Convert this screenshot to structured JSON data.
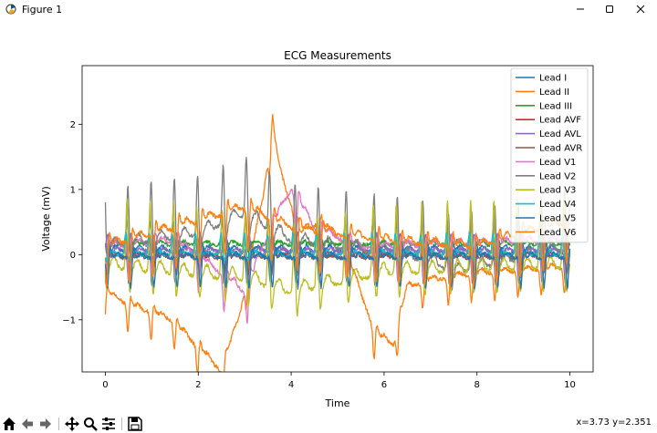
{
  "window": {
    "title": "Figure 1"
  },
  "toolbar": {
    "tools": [
      "home-icon",
      "back-icon",
      "forward-icon",
      "pan-icon",
      "zoom-icon",
      "configure-icon",
      "save-icon"
    ],
    "coords": "x=3.73 y=2.351"
  },
  "chart_data": {
    "type": "line",
    "title": "ECG Measurements",
    "xlabel": "Time",
    "ylabel": "Voltage (mV)",
    "xlim": [
      -0.5,
      10.5
    ],
    "ylim": [
      -1.8,
      2.9
    ],
    "xticks": [
      0,
      2,
      4,
      6,
      8,
      10
    ],
    "yticks": [
      -1,
      0,
      1,
      2
    ],
    "ytick_labels": [
      "−1",
      "0",
      "1",
      "2"
    ],
    "grid": false,
    "legend_position": "top-right",
    "series": [
      {
        "name": "Lead I",
        "color": "#1f77b4",
        "seed": 1,
        "amp": 0.55,
        "base": 0.05,
        "drift": []
      },
      {
        "name": "Lead II",
        "color": "#ff7f0e",
        "seed": 2,
        "amp": 0.45,
        "base": -0.3,
        "drift": [
          [
            0,
            -0.3
          ],
          [
            0.6,
            -0.5
          ],
          [
            1.4,
            -0.7
          ],
          [
            2.5,
            -1.5
          ],
          [
            2.9,
            -0.6
          ],
          [
            3.4,
            1.2
          ],
          [
            3.6,
            2.3
          ],
          [
            3.75,
            1.6
          ],
          [
            4.2,
            0.6
          ],
          [
            4.6,
            0.8
          ],
          [
            5.1,
            0.5
          ],
          [
            5.8,
            -0.9
          ],
          [
            6.2,
            -1.1
          ],
          [
            6.5,
            -0.2
          ],
          [
            7,
            -0.1
          ],
          [
            8,
            0.0
          ],
          [
            10,
            0.1
          ]
        ]
      },
      {
        "name": "Lead III",
        "color": "#2ca02c",
        "seed": 3,
        "amp": 0.4,
        "base": 0.15,
        "drift": []
      },
      {
        "name": "Lead AVF",
        "color": "#d62728",
        "seed": 4,
        "amp": 0.25,
        "base": 0.0,
        "drift": []
      },
      {
        "name": "Lead AVL",
        "color": "#9467bd",
        "seed": 5,
        "amp": 0.3,
        "base": 0.05,
        "drift": []
      },
      {
        "name": "Lead AVR",
        "color": "#8c564b",
        "seed": 6,
        "amp": 0.3,
        "base": -0.05,
        "drift": []
      },
      {
        "name": "Lead V1",
        "color": "#e377c2",
        "seed": 7,
        "amp": 0.6,
        "base": 0.1,
        "drift": [
          [
            0,
            0.0
          ],
          [
            1.5,
            0.1
          ],
          [
            2.5,
            -0.4
          ],
          [
            3.0,
            -0.7
          ],
          [
            3.5,
            0.2
          ],
          [
            4.0,
            0.9
          ],
          [
            4.5,
            0.3
          ],
          [
            5.5,
            0.0
          ],
          [
            10,
            0.1
          ]
        ]
      },
      {
        "name": "Lead V2",
        "color": "#7f7f7f",
        "seed": 8,
        "amp": 1.0,
        "base": 0.1,
        "drift": [
          [
            0,
            0.0
          ],
          [
            2,
            0.2
          ],
          [
            3,
            0.5
          ],
          [
            4,
            0.1
          ],
          [
            7,
            -0.2
          ],
          [
            7.5,
            -0.4
          ],
          [
            10,
            0.0
          ]
        ]
      },
      {
        "name": "Lead V3",
        "color": "#bcbd22",
        "seed": 9,
        "amp": 1.2,
        "base": -0.2,
        "drift": [
          [
            0,
            0.0
          ],
          [
            3,
            -0.2
          ],
          [
            4,
            -0.4
          ],
          [
            6,
            -0.1
          ],
          [
            10,
            0.0
          ]
        ]
      },
      {
        "name": "Lead V4",
        "color": "#17becf",
        "seed": 10,
        "amp": 0.35,
        "base": 0.0,
        "drift": []
      },
      {
        "name": "Lead V5",
        "color": "#1f77b4",
        "seed": 11,
        "amp": 0.5,
        "base": -0.05,
        "drift": []
      },
      {
        "name": "Lead V6",
        "color": "#ff7f0e",
        "seed": 12,
        "amp": 0.7,
        "base": 0.1,
        "drift": [
          [
            0,
            0.0
          ],
          [
            2,
            0.4
          ],
          [
            3,
            0.6
          ],
          [
            4,
            0.3
          ],
          [
            6,
            0.1
          ],
          [
            8,
            0.0
          ],
          [
            10,
            0.4
          ]
        ]
      }
    ],
    "beat_times": [
      0.0,
      0.5,
      1.0,
      1.5,
      2.0,
      2.55,
      3.05,
      3.55,
      4.1,
      4.6,
      5.2,
      5.8,
      6.3,
      6.85,
      7.4,
      7.9,
      8.4,
      8.9,
      9.4,
      9.9
    ]
  }
}
